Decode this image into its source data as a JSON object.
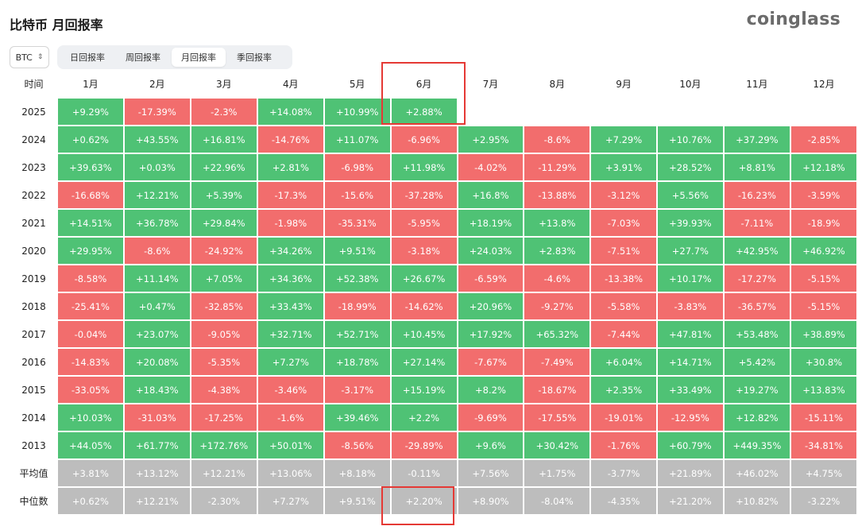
{
  "title": "比特币 月回报率",
  "brand": "coinglass",
  "asset_select": {
    "value": "BTC",
    "icon": "chevron-up-down-icon"
  },
  "tabs": [
    {
      "label": "日回报率",
      "active": false
    },
    {
      "label": "周回报率",
      "active": false
    },
    {
      "label": "月回报率",
      "active": true
    },
    {
      "label": "季回报率",
      "active": false
    }
  ],
  "colors": {
    "positive": "#4fc275",
    "negative": "#f26d6d",
    "neutral": "#bdbdbd",
    "highlight": "#e53935"
  },
  "table": {
    "corner_label": "时间",
    "months": [
      "1月",
      "2月",
      "3月",
      "4月",
      "5月",
      "6月",
      "7月",
      "8月",
      "9月",
      "10月",
      "11月",
      "12月"
    ],
    "years": [
      {
        "year": "2025",
        "values": [
          "+9.29%",
          "-17.39%",
          "-2.3%",
          "+14.08%",
          "+10.99%",
          "+2.88%",
          "",
          "",
          "",
          "",
          "",
          ""
        ]
      },
      {
        "year": "2024",
        "values": [
          "+0.62%",
          "+43.55%",
          "+16.81%",
          "-14.76%",
          "+11.07%",
          "-6.96%",
          "+2.95%",
          "-8.6%",
          "+7.29%",
          "+10.76%",
          "+37.29%",
          "-2.85%"
        ]
      },
      {
        "year": "2023",
        "values": [
          "+39.63%",
          "+0.03%",
          "+22.96%",
          "+2.81%",
          "-6.98%",
          "+11.98%",
          "-4.02%",
          "-11.29%",
          "+3.91%",
          "+28.52%",
          "+8.81%",
          "+12.18%"
        ]
      },
      {
        "year": "2022",
        "values": [
          "-16.68%",
          "+12.21%",
          "+5.39%",
          "-17.3%",
          "-15.6%",
          "-37.28%",
          "+16.8%",
          "-13.88%",
          "-3.12%",
          "+5.56%",
          "-16.23%",
          "-3.59%"
        ]
      },
      {
        "year": "2021",
        "values": [
          "+14.51%",
          "+36.78%",
          "+29.84%",
          "-1.98%",
          "-35.31%",
          "-5.95%",
          "+18.19%",
          "+13.8%",
          "-7.03%",
          "+39.93%",
          "-7.11%",
          "-18.9%"
        ]
      },
      {
        "year": "2020",
        "values": [
          "+29.95%",
          "-8.6%",
          "-24.92%",
          "+34.26%",
          "+9.51%",
          "-3.18%",
          "+24.03%",
          "+2.83%",
          "-7.51%",
          "+27.7%",
          "+42.95%",
          "+46.92%"
        ]
      },
      {
        "year": "2019",
        "values": [
          "-8.58%",
          "+11.14%",
          "+7.05%",
          "+34.36%",
          "+52.38%",
          "+26.67%",
          "-6.59%",
          "-4.6%",
          "-13.38%",
          "+10.17%",
          "-17.27%",
          "-5.15%"
        ]
      },
      {
        "year": "2018",
        "values": [
          "-25.41%",
          "+0.47%",
          "-32.85%",
          "+33.43%",
          "-18.99%",
          "-14.62%",
          "+20.96%",
          "-9.27%",
          "-5.58%",
          "-3.83%",
          "-36.57%",
          "-5.15%"
        ]
      },
      {
        "year": "2017",
        "values": [
          "-0.04%",
          "+23.07%",
          "-9.05%",
          "+32.71%",
          "+52.71%",
          "+10.45%",
          "+17.92%",
          "+65.32%",
          "-7.44%",
          "+47.81%",
          "+53.48%",
          "+38.89%"
        ]
      },
      {
        "year": "2016",
        "values": [
          "-14.83%",
          "+20.08%",
          "-5.35%",
          "+7.27%",
          "+18.78%",
          "+27.14%",
          "-7.67%",
          "-7.49%",
          "+6.04%",
          "+14.71%",
          "+5.42%",
          "+30.8%"
        ]
      },
      {
        "year": "2015",
        "values": [
          "-33.05%",
          "+18.43%",
          "-4.38%",
          "-3.46%",
          "-3.17%",
          "+15.19%",
          "+8.2%",
          "-18.67%",
          "+2.35%",
          "+33.49%",
          "+19.27%",
          "+13.83%"
        ]
      },
      {
        "year": "2014",
        "values": [
          "+10.03%",
          "-31.03%",
          "-17.25%",
          "-1.6%",
          "+39.46%",
          "+2.2%",
          "-9.69%",
          "-17.55%",
          "-19.01%",
          "-12.95%",
          "+12.82%",
          "-15.11%"
        ]
      },
      {
        "year": "2013",
        "values": [
          "+44.05%",
          "+61.77%",
          "+172.76%",
          "+50.01%",
          "-8.56%",
          "-29.89%",
          "+9.6%",
          "+30.42%",
          "-1.76%",
          "+60.79%",
          "+449.35%",
          "-34.81%"
        ]
      }
    ],
    "summary_rows": [
      {
        "label": "平均值",
        "values": [
          "+3.81%",
          "+13.12%",
          "+12.21%",
          "+13.06%",
          "+8.18%",
          "-0.11%",
          "+7.56%",
          "+1.75%",
          "-3.77%",
          "+21.89%",
          "+46.02%",
          "+4.75%"
        ]
      },
      {
        "label": "中位数",
        "values": [
          "+0.62%",
          "+12.21%",
          "-2.30%",
          "+7.27%",
          "+9.51%",
          "+2.20%",
          "+8.90%",
          "-8.04%",
          "-4.35%",
          "+21.20%",
          "+10.82%",
          "-3.22%"
        ]
      }
    ]
  }
}
